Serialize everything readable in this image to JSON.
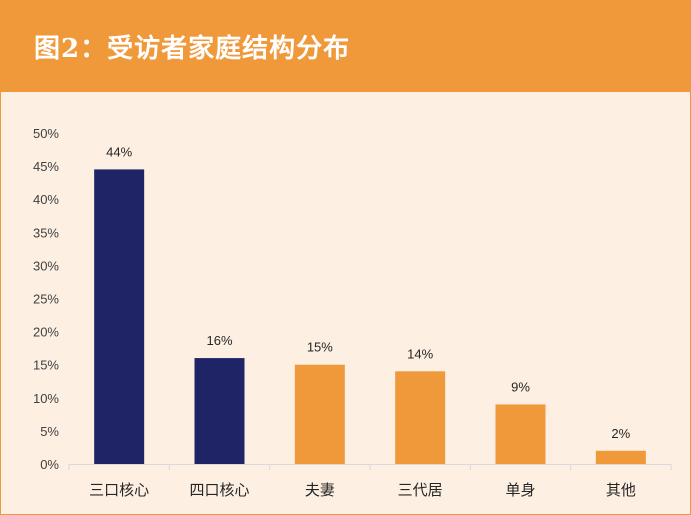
{
  "header": {
    "title": "图2：受访者家庭结构分布"
  },
  "colors": {
    "header_bg": "#f0993b",
    "plot_bg": "#fdf0e3",
    "bar_dark": "#1f2466",
    "bar_orange": "#f0993b",
    "axis": "#d9d9d9"
  },
  "chart_data": {
    "type": "bar",
    "title": "图2：受访者家庭结构分布",
    "xlabel": "",
    "ylabel": "",
    "categories": [
      "三口核心",
      "四口核心",
      "夫妻",
      "三代居",
      "单身",
      "其他"
    ],
    "values": [
      0.445,
      0.16,
      0.15,
      0.14,
      0.09,
      0.02
    ],
    "data_labels": [
      "44%",
      "16%",
      "15%",
      "14%",
      "9%",
      "2%"
    ],
    "bar_colors": [
      "#1f2466",
      "#1f2466",
      "#f0993b",
      "#f0993b",
      "#f0993b",
      "#f0993b"
    ],
    "ylim": [
      0,
      0.5
    ],
    "yticks": [
      0,
      0.05,
      0.1,
      0.15,
      0.2,
      0.25,
      0.3,
      0.35,
      0.4,
      0.45,
      0.5
    ],
    "ytick_labels": [
      "0%",
      "5%",
      "10%",
      "15%",
      "20%",
      "25%",
      "30%",
      "35%",
      "40%",
      "45%",
      "50%"
    ],
    "grid": false,
    "legend": "none"
  }
}
